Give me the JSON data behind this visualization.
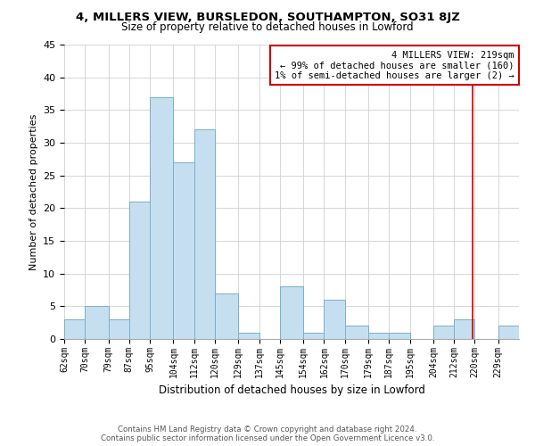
{
  "title": "4, MILLERS VIEW, BURSLEDON, SOUTHAMPTON, SO31 8JZ",
  "subtitle": "Size of property relative to detached houses in Lowford",
  "xlabel": "Distribution of detached houses by size in Lowford",
  "ylabel": "Number of detached properties",
  "bin_labels": [
    "62sqm",
    "70sqm",
    "79sqm",
    "87sqm",
    "95sqm",
    "104sqm",
    "112sqm",
    "120sqm",
    "129sqm",
    "137sqm",
    "145sqm",
    "154sqm",
    "162sqm",
    "170sqm",
    "179sqm",
    "187sqm",
    "195sqm",
    "204sqm",
    "212sqm",
    "220sqm",
    "229sqm"
  ],
  "bar_values": [
    3,
    5,
    3,
    21,
    37,
    27,
    32,
    7,
    1,
    0,
    8,
    1,
    6,
    2,
    1,
    1,
    0,
    2,
    3,
    0,
    2
  ],
  "bar_color": "#c6dff0",
  "bar_edge_color": "#7aaecb",
  "vline_x": 219,
  "vline_color": "#cc0000",
  "annotation_title": "4 MILLERS VIEW: 219sqm",
  "annotation_line1": "← 99% of detached houses are smaller (160)",
  "annotation_line2": "1% of semi-detached houses are larger (2) →",
  "annotation_box_color": "#cc0000",
  "footer_line1": "Contains HM Land Registry data © Crown copyright and database right 2024.",
  "footer_line2": "Contains public sector information licensed under the Open Government Licence v3.0.",
  "ylim": [
    0,
    45
  ],
  "bin_edges": [
    62,
    70,
    79,
    87,
    95,
    104,
    112,
    120,
    129,
    137,
    145,
    154,
    162,
    170,
    179,
    187,
    195,
    204,
    212,
    220,
    229,
    237
  ],
  "yticks": [
    0,
    5,
    10,
    15,
    20,
    25,
    30,
    35,
    40,
    45
  ]
}
